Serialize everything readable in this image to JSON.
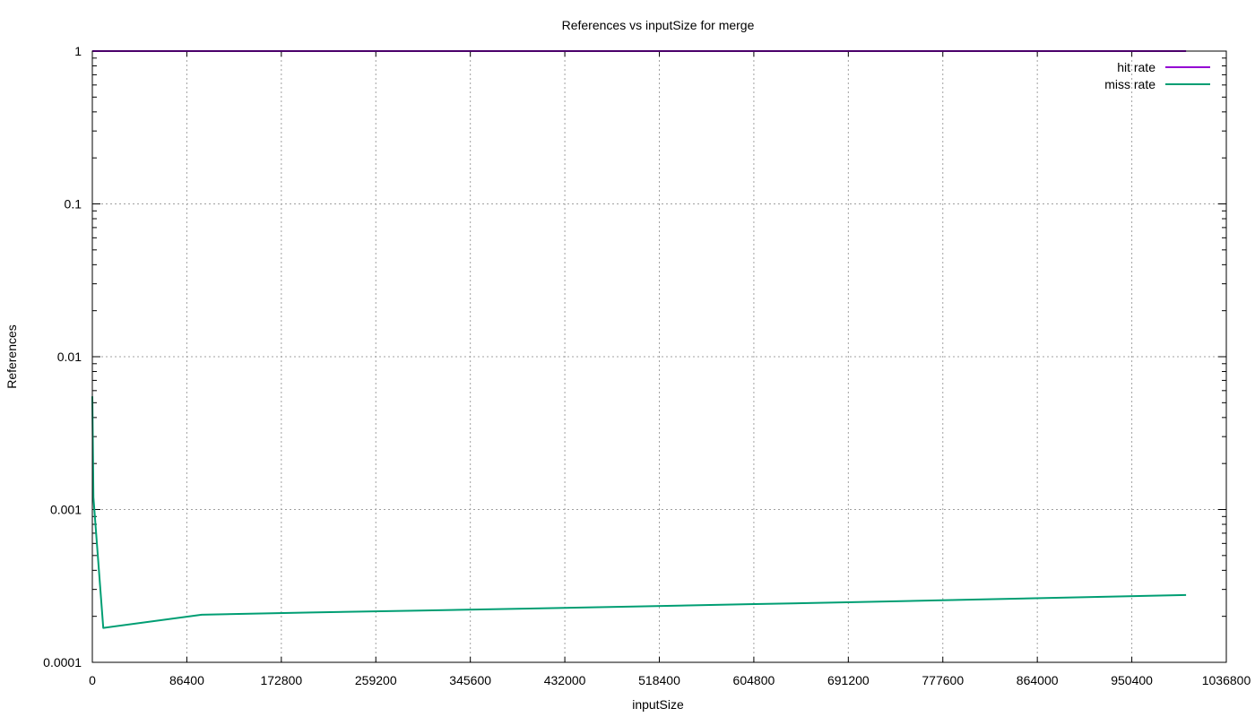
{
  "chart_data": {
    "type": "line",
    "title": "References vs inputSize for merge",
    "xlabel": "inputSize",
    "ylabel": "References",
    "xlim": [
      0,
      1036800
    ],
    "ylim": [
      0.0001,
      1
    ],
    "yscale": "log",
    "grid": true,
    "legend_position": "top-right",
    "x_ticks": [
      0,
      86400,
      172800,
      259200,
      345600,
      432000,
      518400,
      604800,
      691200,
      777600,
      864000,
      950400,
      1036800
    ],
    "x_tick_labels": [
      "0",
      "86400",
      "172800",
      "259200",
      "345600",
      "432000",
      "518400",
      "604800",
      "691200",
      "777600",
      "864000",
      "950400",
      "1036800"
    ],
    "y_ticks": [
      0.0001,
      0.001,
      0.01,
      0.1,
      1
    ],
    "y_tick_labels": [
      "0.0001",
      "0.001",
      "0.01",
      "0.1",
      "1"
    ],
    "series": [
      {
        "name": "hit rate",
        "color": "#9400d3",
        "points": [
          [
            0,
            0.9995
          ],
          [
            10000,
            0.9998
          ],
          [
            100000,
            0.9998
          ],
          [
            1000000,
            0.9997
          ]
        ]
      },
      {
        "name": "miss rate",
        "color": "#009e73",
        "points": [
          [
            0,
            0.0055
          ],
          [
            1000,
            0.0012
          ],
          [
            10000,
            0.000168
          ],
          [
            100000,
            0.000205
          ],
          [
            200000,
            0.000212
          ],
          [
            300000,
            0.000218
          ],
          [
            400000,
            0.000225
          ],
          [
            500000,
            0.000232
          ],
          [
            600000,
            0.00024
          ],
          [
            700000,
            0.000248
          ],
          [
            800000,
            0.000257
          ],
          [
            900000,
            0.000266
          ],
          [
            1000000,
            0.000276
          ]
        ]
      }
    ]
  }
}
